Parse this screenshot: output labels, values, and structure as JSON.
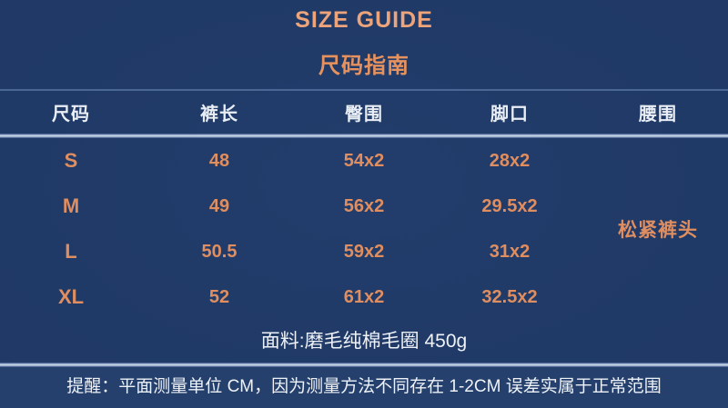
{
  "colors": {
    "background": "#1f3763",
    "footer_band": "#25406d",
    "title_orange": "#eda47a",
    "accent_orange": "#de8e60",
    "text_white": "#e9eef5",
    "divider_bright": "#d6dfeb",
    "divider_dim": "#4a6693"
  },
  "chart_data": {
    "type": "table",
    "title": "SIZE GUIDE",
    "subtitle": "尺码指南",
    "columns": [
      "尺码",
      "裤长",
      "臀围",
      "脚口",
      "腰围"
    ],
    "rows": [
      [
        "S",
        "48",
        "54x2",
        "28x2"
      ],
      [
        "M",
        "49",
        "56x2",
        "29.5x2"
      ],
      [
        "L",
        "50.5",
        "59x2",
        "31x2"
      ],
      [
        "XL",
        "52",
        "61x2",
        "32.5x2"
      ]
    ],
    "waist_merged_note": "松紧裤头",
    "fabric_note": "面料:磨毛纯棉毛圈 450g",
    "reminder": "提醒：平面测量单位 CM，因为测量方法不同存在 1-2CM 误差实属于正常范围",
    "layout_hints": {
      "unit": "CM",
      "merged_cell": "腰围 column merged across rows S-XL",
      "grid": "off"
    }
  }
}
